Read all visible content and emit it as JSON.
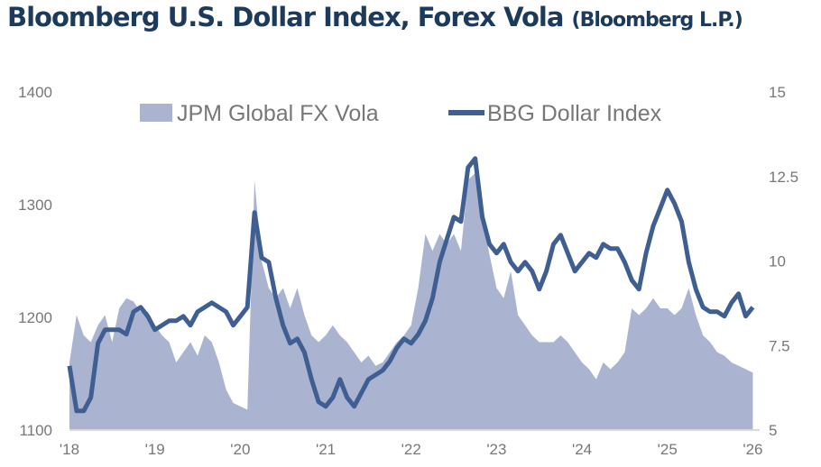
{
  "chart_data": {
    "type": "area+line",
    "title": "Bloomberg U.S. Dollar Index, Forex Vola",
    "source": "(Bloomberg L.P.)",
    "x_ticks": [
      "'18",
      "'19",
      "'20",
      "'21",
      "'22",
      "'23",
      "'24",
      "'25",
      "'26"
    ],
    "xlim": [
      2018.0,
      2026.08
    ],
    "y_left": {
      "ticks": [
        "1100",
        "1200",
        "1300",
        "1400"
      ],
      "lim": [
        1100,
        1400
      ]
    },
    "y_right": {
      "ticks": [
        "5",
        "7.5",
        "10",
        "12.5",
        "15"
      ],
      "lim": [
        5,
        15
      ]
    },
    "grid": false,
    "legend_placement": "top",
    "colors": {
      "vola": "#aab4d0",
      "dollar": "#3f5f93",
      "title": "#1b3a5c"
    },
    "x_start": "2018-01",
    "x_step": "month",
    "series": [
      {
        "name": "JPM Global FX Vola",
        "axis": "right",
        "kind": "area",
        "values": [
          7.0,
          8.4,
          7.8,
          7.6,
          8.1,
          8.4,
          7.6,
          8.6,
          8.9,
          8.8,
          8.5,
          8.5,
          8.1,
          7.8,
          7.6,
          7.0,
          7.3,
          7.6,
          7.2,
          7.8,
          7.6,
          7.0,
          6.2,
          5.8,
          5.7,
          5.6,
          12.4,
          10.0,
          9.2,
          8.9,
          9.2,
          8.6,
          9.2,
          8.4,
          7.8,
          7.6,
          7.8,
          8.1,
          7.8,
          7.6,
          7.3,
          7.0,
          7.2,
          6.9,
          7.0,
          7.3,
          7.6,
          7.8,
          8.1,
          9.2,
          10.8,
          10.3,
          10.8,
          10.5,
          10.8,
          10.3,
          12.4,
          12.6,
          11.3,
          10.2,
          9.2,
          8.9,
          9.7,
          8.4,
          8.1,
          7.8,
          7.6,
          7.6,
          7.6,
          7.8,
          7.6,
          7.3,
          7.0,
          6.8,
          6.5,
          7.0,
          6.8,
          7.0,
          7.3,
          8.6,
          8.4,
          8.6,
          8.9,
          8.6,
          8.6,
          8.4,
          8.6,
          9.2,
          8.4,
          7.8,
          7.6,
          7.3,
          7.2,
          7.0,
          6.9,
          6.8,
          6.7
        ]
      },
      {
        "name": "BBG Dollar Index",
        "axis": "left",
        "kind": "line",
        "values": [
          1157,
          1117,
          1117,
          1129,
          1177,
          1189,
          1189,
          1189,
          1185,
          1205,
          1209,
          1201,
          1189,
          1193,
          1197,
          1197,
          1201,
          1193,
          1205,
          1209,
          1213,
          1209,
          1205,
          1193,
          1201,
          1209,
          1293,
          1253,
          1249,
          1217,
          1193,
          1177,
          1181,
          1169,
          1145,
          1125,
          1121,
          1129,
          1145,
          1129,
          1121,
          1133,
          1145,
          1149,
          1153,
          1161,
          1173,
          1181,
          1177,
          1185,
          1197,
          1217,
          1249,
          1269,
          1289,
          1285,
          1333,
          1341,
          1289,
          1265,
          1257,
          1265,
          1249,
          1241,
          1249,
          1241,
          1225,
          1241,
          1265,
          1273,
          1257,
          1241,
          1249,
          1257,
          1253,
          1265,
          1261,
          1261,
          1249,
          1233,
          1225,
          1257,
          1281,
          1297,
          1313,
          1301,
          1285,
          1249,
          1225,
          1209,
          1205,
          1205,
          1201,
          1213,
          1221,
          1201,
          1209
        ]
      }
    ]
  }
}
